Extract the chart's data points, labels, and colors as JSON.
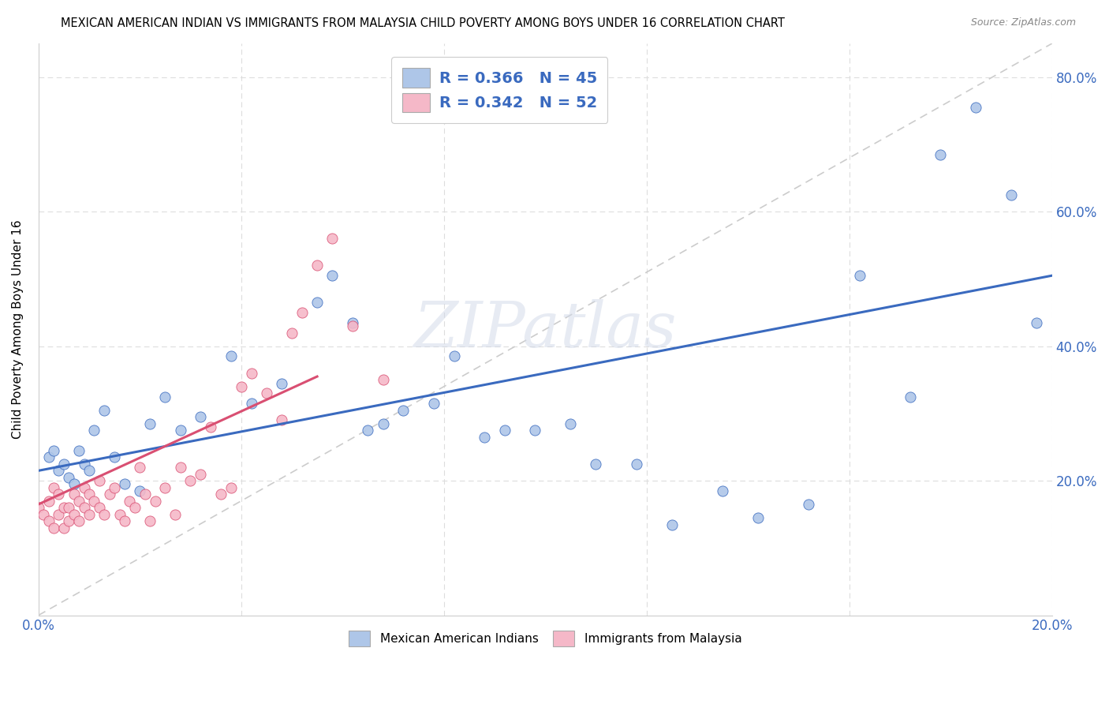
{
  "title": "MEXICAN AMERICAN INDIAN VS IMMIGRANTS FROM MALAYSIA CHILD POVERTY AMONG BOYS UNDER 16 CORRELATION CHART",
  "source": "Source: ZipAtlas.com",
  "ylabel": "Child Poverty Among Boys Under 16",
  "xlim": [
    0.0,
    0.2
  ],
  "ylim": [
    0.0,
    0.85
  ],
  "series1_color": "#aec6e8",
  "series2_color": "#f5b8c8",
  "line1_color": "#3a6abf",
  "line2_color": "#d94f72",
  "diag_color": "#cccccc",
  "grid_color": "#dddddd",
  "R1": 0.366,
  "N1": 45,
  "R2": 0.342,
  "N2": 52,
  "watermark": "ZIPatlas",
  "legend_label1": "Mexican American Indians",
  "legend_label2": "Immigrants from Malaysia",
  "blue_line_x0": 0.0,
  "blue_line_y0": 0.215,
  "blue_line_x1": 0.2,
  "blue_line_y1": 0.505,
  "pink_line_x0": 0.0,
  "pink_line_y0": 0.165,
  "pink_line_x1": 0.055,
  "pink_line_y1": 0.355,
  "series1_x": [
    0.002,
    0.003,
    0.004,
    0.005,
    0.006,
    0.007,
    0.008,
    0.009,
    0.01,
    0.011,
    0.013,
    0.015,
    0.017,
    0.02,
    0.022,
    0.025,
    0.028,
    0.032,
    0.038,
    0.042,
    0.048,
    0.055,
    0.058,
    0.062,
    0.065,
    0.068,
    0.072,
    0.078,
    0.082,
    0.088,
    0.092,
    0.098,
    0.105,
    0.11,
    0.118,
    0.125,
    0.135,
    0.142,
    0.152,
    0.162,
    0.172,
    0.178,
    0.185,
    0.192,
    0.197
  ],
  "series1_y": [
    0.235,
    0.245,
    0.215,
    0.225,
    0.205,
    0.195,
    0.245,
    0.225,
    0.215,
    0.275,
    0.305,
    0.235,
    0.195,
    0.185,
    0.285,
    0.325,
    0.275,
    0.295,
    0.385,
    0.315,
    0.345,
    0.465,
    0.505,
    0.435,
    0.275,
    0.285,
    0.305,
    0.315,
    0.385,
    0.265,
    0.275,
    0.275,
    0.285,
    0.225,
    0.225,
    0.135,
    0.185,
    0.145,
    0.165,
    0.505,
    0.325,
    0.685,
    0.755,
    0.625,
    0.435
  ],
  "series2_x": [
    0.0,
    0.001,
    0.002,
    0.002,
    0.003,
    0.003,
    0.004,
    0.004,
    0.005,
    0.005,
    0.006,
    0.006,
    0.007,
    0.007,
    0.008,
    0.008,
    0.009,
    0.009,
    0.01,
    0.01,
    0.011,
    0.012,
    0.012,
    0.013,
    0.014,
    0.015,
    0.016,
    0.017,
    0.018,
    0.019,
    0.02,
    0.021,
    0.022,
    0.023,
    0.025,
    0.027,
    0.028,
    0.03,
    0.032,
    0.034,
    0.036,
    0.038,
    0.04,
    0.042,
    0.045,
    0.048,
    0.05,
    0.052,
    0.055,
    0.058,
    0.062,
    0.068
  ],
  "series2_y": [
    0.16,
    0.15,
    0.17,
    0.14,
    0.19,
    0.13,
    0.15,
    0.18,
    0.16,
    0.13,
    0.16,
    0.14,
    0.18,
    0.15,
    0.17,
    0.14,
    0.19,
    0.16,
    0.18,
    0.15,
    0.17,
    0.2,
    0.16,
    0.15,
    0.18,
    0.19,
    0.15,
    0.14,
    0.17,
    0.16,
    0.22,
    0.18,
    0.14,
    0.17,
    0.19,
    0.15,
    0.22,
    0.2,
    0.21,
    0.28,
    0.18,
    0.19,
    0.34,
    0.36,
    0.33,
    0.29,
    0.42,
    0.45,
    0.52,
    0.56,
    0.43,
    0.35
  ]
}
